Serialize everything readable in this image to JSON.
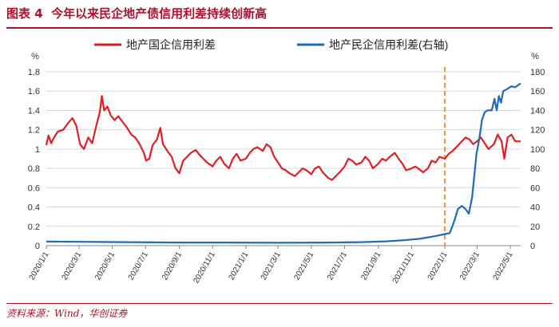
{
  "header": {
    "figure_label": "图表 4",
    "title": "今年以来民企地产债信用利差持续创新高"
  },
  "source_note": "资料来源：Wind，华创证券",
  "chart_data": {
    "type": "line",
    "title": "今年以来民企地产债信用利差持续创新高",
    "left_unit": "%",
    "right_unit": "%",
    "ylim_left": [
      0,
      1.8
    ],
    "ylim_right": [
      0,
      180
    ],
    "left_ticks": [
      "0",
      "0.2",
      "0.4",
      "0.6",
      "0.8",
      "1",
      "1.2",
      "1.4",
      "1.6",
      "1.8"
    ],
    "right_ticks": [
      "0",
      "20",
      "40",
      "60",
      "80",
      "100",
      "120",
      "140",
      "160",
      "180"
    ],
    "x_ticks": [
      "2020/1/1",
      "2020/3/1",
      "2020/5/1",
      "2020/7/1",
      "2020/9/1",
      "2020/11/1",
      "2021/1/1",
      "2021/3/1",
      "2021/5/1",
      "2021/7/1",
      "2021/9/1",
      "2021/11/1",
      "2022/1/1",
      "2022/3/1",
      "2022/5/1"
    ],
    "x_range": [
      "2020/1/1",
      "2022/5/20"
    ],
    "vline_date": "2022/1/1",
    "legend_position": "top",
    "series": [
      {
        "name": "地产国企信用利差",
        "axis": "left",
        "color": "#e01e26",
        "points": [
          [
            "2020/1/1",
            1.04
          ],
          [
            "2020/1/5",
            1.14
          ],
          [
            "2020/1/10",
            1.06
          ],
          [
            "2020/1/15",
            1.12
          ],
          [
            "2020/1/22",
            1.18
          ],
          [
            "2020/2/1",
            1.2
          ],
          [
            "2020/2/10",
            1.27
          ],
          [
            "2020/2/18",
            1.32
          ],
          [
            "2020/2/25",
            1.24
          ],
          [
            "2020/3/3",
            1.05
          ],
          [
            "2020/3/10",
            1.0
          ],
          [
            "2020/3/18",
            1.12
          ],
          [
            "2020/3/25",
            1.06
          ],
          [
            "2020/4/2",
            1.25
          ],
          [
            "2020/4/8",
            1.38
          ],
          [
            "2020/4/12",
            1.55
          ],
          [
            "2020/4/16",
            1.4
          ],
          [
            "2020/4/22",
            1.44
          ],
          [
            "2020/4/28",
            1.35
          ],
          [
            "2020/5/5",
            1.3
          ],
          [
            "2020/5/12",
            1.34
          ],
          [
            "2020/5/20",
            1.28
          ],
          [
            "2020/5/28",
            1.22
          ],
          [
            "2020/6/5",
            1.15
          ],
          [
            "2020/6/12",
            1.12
          ],
          [
            "2020/6/20",
            1.05
          ],
          [
            "2020/6/28",
            0.96
          ],
          [
            "2020/7/2",
            0.88
          ],
          [
            "2020/7/8",
            0.9
          ],
          [
            "2020/7/14",
            1.04
          ],
          [
            "2020/7/22",
            1.1
          ],
          [
            "2020/7/28",
            1.22
          ],
          [
            "2020/8/2",
            1.05
          ],
          [
            "2020/8/10",
            0.98
          ],
          [
            "2020/8/18",
            0.92
          ],
          [
            "2020/8/25",
            0.8
          ],
          [
            "2020/9/1",
            0.75
          ],
          [
            "2020/9/8",
            0.88
          ],
          [
            "2020/9/15",
            0.92
          ],
          [
            "2020/9/22",
            0.96
          ],
          [
            "2020/10/1",
            0.99
          ],
          [
            "2020/10/8",
            0.94
          ],
          [
            "2020/10/15",
            0.9
          ],
          [
            "2020/10/22",
            0.86
          ],
          [
            "2020/11/1",
            0.82
          ],
          [
            "2020/11/8",
            0.88
          ],
          [
            "2020/11/15",
            0.92
          ],
          [
            "2020/11/22",
            0.85
          ],
          [
            "2020/12/1",
            0.8
          ],
          [
            "2020/12/8",
            0.9
          ],
          [
            "2020/12/15",
            0.95
          ],
          [
            "2020/12/22",
            0.88
          ],
          [
            "2021/1/1",
            0.9
          ],
          [
            "2021/1/8",
            0.96
          ],
          [
            "2021/1/15",
            1.0
          ],
          [
            "2021/1/22",
            1.02
          ],
          [
            "2021/2/1",
            0.98
          ],
          [
            "2021/2/8",
            1.05
          ],
          [
            "2021/2/15",
            1.02
          ],
          [
            "2021/2/22",
            0.92
          ],
          [
            "2021/3/1",
            0.86
          ],
          [
            "2021/3/8",
            0.8
          ],
          [
            "2021/3/15",
            0.78
          ],
          [
            "2021/3/22",
            0.75
          ],
          [
            "2021/4/1",
            0.72
          ],
          [
            "2021/4/8",
            0.76
          ],
          [
            "2021/4/15",
            0.8
          ],
          [
            "2021/4/22",
            0.78
          ],
          [
            "2021/5/1",
            0.74
          ],
          [
            "2021/5/8",
            0.8
          ],
          [
            "2021/5/15",
            0.82
          ],
          [
            "2021/5/22",
            0.76
          ],
          [
            "2021/6/1",
            0.7
          ],
          [
            "2021/6/8",
            0.68
          ],
          [
            "2021/6/15",
            0.72
          ],
          [
            "2021/6/22",
            0.76
          ],
          [
            "2021/7/1",
            0.82
          ],
          [
            "2021/7/8",
            0.9
          ],
          [
            "2021/7/15",
            0.88
          ],
          [
            "2021/7/22",
            0.84
          ],
          [
            "2021/8/1",
            0.86
          ],
          [
            "2021/8/8",
            0.92
          ],
          [
            "2021/8/15",
            0.88
          ],
          [
            "2021/8/22",
            0.8
          ],
          [
            "2021/9/1",
            0.85
          ],
          [
            "2021/9/8",
            0.9
          ],
          [
            "2021/9/15",
            0.88
          ],
          [
            "2021/9/22",
            0.92
          ],
          [
            "2021/10/1",
            0.96
          ],
          [
            "2021/10/8",
            0.9
          ],
          [
            "2021/10/15",
            0.85
          ],
          [
            "2021/10/22",
            0.78
          ],
          [
            "2021/11/1",
            0.8
          ],
          [
            "2021/11/8",
            0.82
          ],
          [
            "2021/11/15",
            0.79
          ],
          [
            "2021/11/22",
            0.76
          ],
          [
            "2021/12/1",
            0.8
          ],
          [
            "2021/12/8",
            0.88
          ],
          [
            "2021/12/15",
            0.86
          ],
          [
            "2021/12/22",
            0.92
          ],
          [
            "2022/1/1",
            0.9
          ],
          [
            "2022/1/8",
            0.95
          ],
          [
            "2022/1/15",
            0.98
          ],
          [
            "2022/1/22",
            1.02
          ],
          [
            "2022/2/1",
            1.08
          ],
          [
            "2022/2/8",
            1.12
          ],
          [
            "2022/2/15",
            1.1
          ],
          [
            "2022/2/22",
            1.05
          ],
          [
            "2022/3/1",
            1.08
          ],
          [
            "2022/3/8",
            1.12
          ],
          [
            "2022/3/15",
            1.06
          ],
          [
            "2022/3/22",
            1.0
          ],
          [
            "2022/4/1",
            1.05
          ],
          [
            "2022/4/8",
            1.15
          ],
          [
            "2022/4/15",
            1.08
          ],
          [
            "2022/4/20",
            0.9
          ],
          [
            "2022/4/26",
            1.12
          ],
          [
            "2022/5/3",
            1.15
          ],
          [
            "2022/5/10",
            1.08
          ],
          [
            "2022/5/20",
            1.08
          ]
        ]
      },
      {
        "name": "地产民企信用利差(右轴)",
        "axis": "right",
        "color": "#1f6bb8",
        "points": [
          [
            "2020/1/1",
            4.2
          ],
          [
            "2020/3/1",
            4.0
          ],
          [
            "2020/6/1",
            3.6
          ],
          [
            "2020/9/1",
            3.2
          ],
          [
            "2020/12/1",
            3.2
          ],
          [
            "2021/3/1",
            3.0
          ],
          [
            "2021/6/1",
            3.2
          ],
          [
            "2021/8/1",
            3.6
          ],
          [
            "2021/9/15",
            4.5
          ],
          [
            "2021/10/15",
            5.5
          ],
          [
            "2021/11/15",
            7.0
          ],
          [
            "2021/12/15",
            10.0
          ],
          [
            "2022/1/1",
            12.0
          ],
          [
            "2022/1/10",
            13.0
          ],
          [
            "2022/1/18",
            25.0
          ],
          [
            "2022/1/25",
            38.0
          ],
          [
            "2022/2/1",
            41.0
          ],
          [
            "2022/2/8",
            38.0
          ],
          [
            "2022/2/14",
            33.0
          ],
          [
            "2022/2/20",
            50.0
          ],
          [
            "2022/2/28",
            95.0
          ],
          [
            "2022/3/5",
            110.0
          ],
          [
            "2022/3/10",
            130.0
          ],
          [
            "2022/3/15",
            138.0
          ],
          [
            "2022/3/20",
            140.0
          ],
          [
            "2022/3/28",
            140.0
          ],
          [
            "2022/4/2",
            152.0
          ],
          [
            "2022/4/6",
            140.0
          ],
          [
            "2022/4/10",
            155.0
          ],
          [
            "2022/4/14",
            148.0
          ],
          [
            "2022/4/18",
            160.0
          ],
          [
            "2022/4/25",
            162.0
          ],
          [
            "2022/5/3",
            165.0
          ],
          [
            "2022/5/10",
            164.0
          ],
          [
            "2022/5/20",
            168.0
          ]
        ]
      }
    ]
  }
}
